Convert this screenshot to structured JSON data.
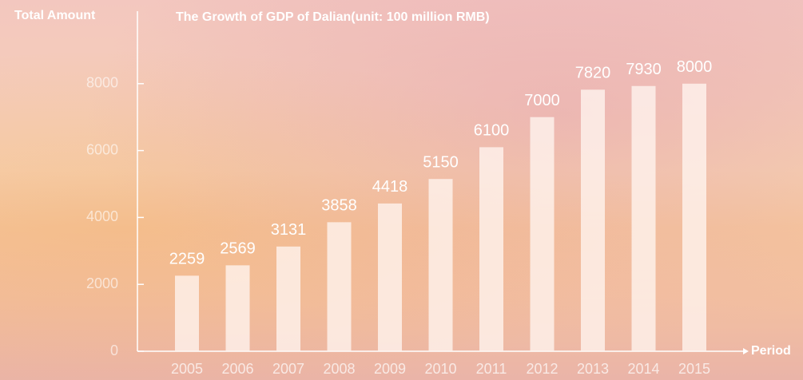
{
  "chart_data": {
    "type": "bar",
    "title": "The Growth of GDP of Dalian(unit: 100 million RMB)",
    "y_axis_label": "Total Amount",
    "x_axis_label": "Period",
    "categories": [
      "2005",
      "2006",
      "2007",
      "2008",
      "2009",
      "2010",
      "2011",
      "2012",
      "2013",
      "2014",
      "2015"
    ],
    "values": [
      2259,
      2569,
      3131,
      3858,
      4418,
      5150,
      6100,
      7000,
      7820,
      7930,
      8000
    ],
    "color": "rgba(255,245,240,0.78)",
    "ylim": [
      0,
      10000
    ],
    "yticks": [
      0,
      2000,
      4000,
      6000,
      8000
    ]
  }
}
